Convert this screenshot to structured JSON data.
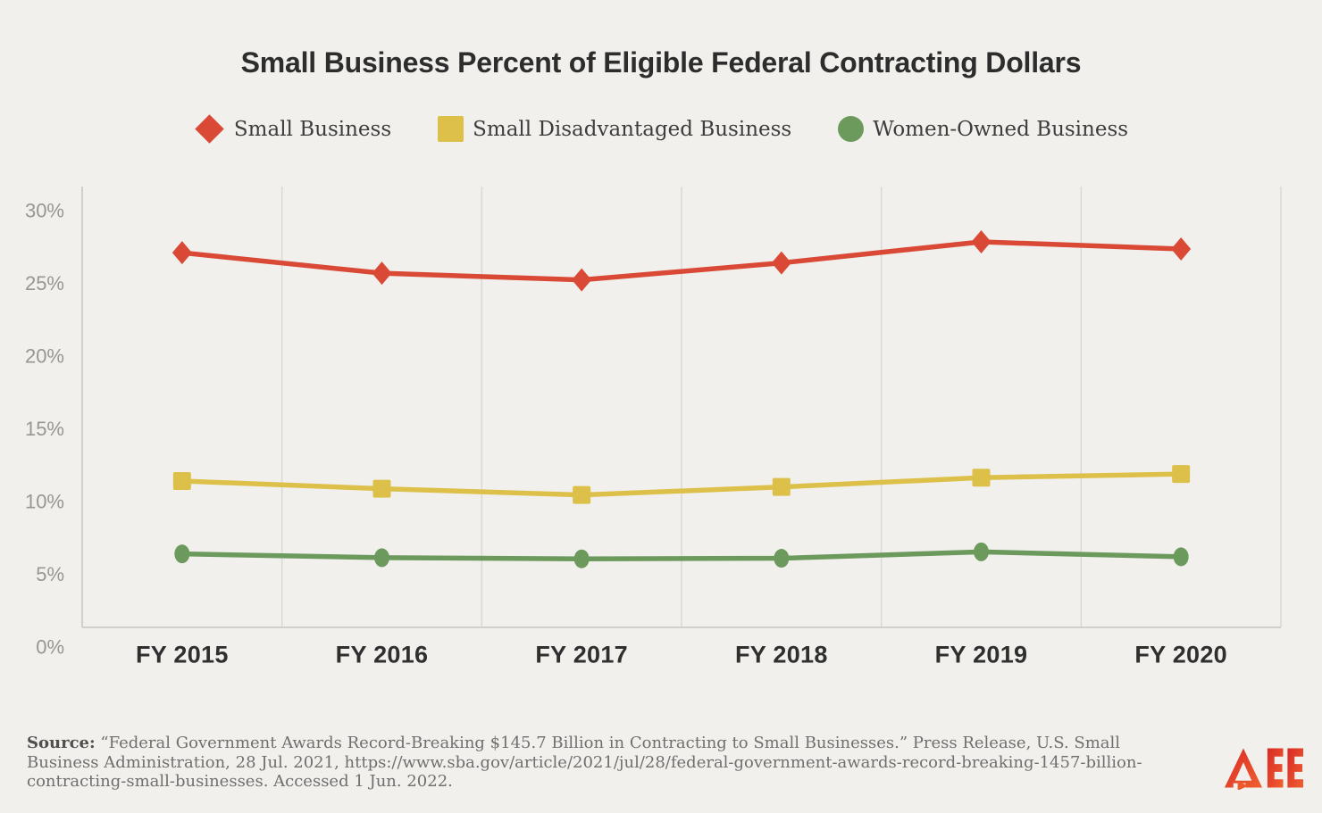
{
  "chart_data": {
    "type": "line",
    "title": "Small Business Percent of Eligible Federal Contracting Dollars",
    "categories": [
      "FY 2015",
      "FY 2016",
      "FY 2017",
      "FY 2018",
      "FY 2019",
      "FY 2020"
    ],
    "series": [
      {
        "name": "Small Business",
        "marker": "diamond",
        "color": "#d94936",
        "values": [
          25.75,
          24.34,
          23.88,
          25.05,
          26.5,
          26.01
        ]
      },
      {
        "name": "Small Disadvantaged Business",
        "marker": "square",
        "color": "#dcc04a",
        "values": [
          10.06,
          9.53,
          9.1,
          9.65,
          10.29,
          10.54
        ]
      },
      {
        "name": "Women-Owned Business",
        "marker": "circle",
        "color": "#6b9a5c",
        "values": [
          5.05,
          4.79,
          4.71,
          4.75,
          5.19,
          4.85
        ]
      }
    ],
    "xlabel": "",
    "ylabel": "",
    "yticks": [
      "0%",
      "5%",
      "10%",
      "15%",
      "20%",
      "25%",
      "30%"
    ],
    "ylim": [
      0,
      30.3
    ],
    "grid": "vertical",
    "legend_position": "top"
  },
  "source": {
    "label": "Source:",
    "text": " “Federal Government Awards Record-Breaking $145.7 Billion in Contracting to Small Businesses.” Press Release, U.S. Small Business Administration, 28 Jul. 2021, https://www.sba.gov/article/2021/jul/28/federal-government-awards-record-breaking-1457-billion-contracting-small-businesses. Accessed 1 Jun. 2022."
  },
  "logo": {
    "alt": "AEE"
  },
  "colors": {
    "background": "#f1f0ed",
    "gridline": "#d9d9d5",
    "axis": "#c6c6c2",
    "title": "#2d2d2d",
    "y_tick_label": "#969694",
    "x_tick_label": "#2f2f2f",
    "legend_label": "#3d3d3d",
    "source_text": "#6f6f6f",
    "logo_red": "#d92a26",
    "logo_orange": "#f0602f"
  }
}
